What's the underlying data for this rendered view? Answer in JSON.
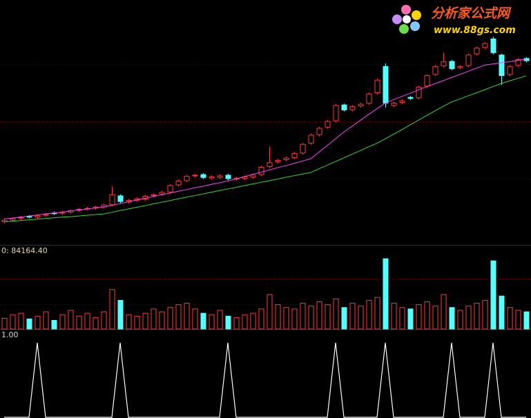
{
  "chart_data": {
    "type": "candlestick",
    "watermark": {
      "title": "分析家公式网",
      "url": "www.88gs.com"
    },
    "ylim": [
      0,
      100
    ],
    "yticks": [
      25,
      50,
      75
    ],
    "grid": true,
    "up_color": "#ff3c3c",
    "down_color": "#54ffff",
    "open": [
      6.2,
      6.9,
      7.6,
      8.5,
      8.2,
      9.0,
      10.0,
      9.9,
      10.4,
      11.2,
      11.9,
      12.2,
      12.7,
      13.6,
      17.5,
      14.8,
      15.6,
      16.1,
      17.6,
      18.3,
      19.2,
      22.3,
      24.1,
      26.2,
      26.8,
      25.3,
      25.6,
      26.5,
      24.8,
      25.1,
      25.7,
      26.8,
      30.3,
      32.4,
      33.3,
      34.2,
      36.2,
      40.5,
      44.2,
      47.5,
      50.3,
      57.2,
      55.1,
      56.8,
      57.9,
      62.5,
      74.0,
      57.0,
      58.3,
      60.5,
      60.3,
      65.4,
      70.5,
      74.3,
      76.2,
      73.5,
      74.4,
      79.5,
      82.3,
      86.0,
      79.0,
      70.5,
      74.5,
      77.5
    ],
    "high": [
      7.4,
      8.1,
      8.6,
      9.1,
      9.4,
      10.0,
      10.6,
      10.9,
      11.6,
      12.2,
      12.6,
      13.2,
      14.1,
      21.7,
      18.1,
      16.1,
      16.8,
      17.9,
      18.6,
      19.6,
      22.6,
      24.6,
      26.6,
      27.1,
      27.4,
      26.4,
      26.8,
      27.1,
      25.8,
      26.4,
      27.2,
      30.6,
      39.0,
      33.6,
      34.6,
      36.6,
      40.6,
      44.6,
      47.6,
      50.6,
      57.6,
      57.8,
      57.1,
      58.1,
      62.6,
      68.6,
      75.3,
      58.6,
      59.6,
      61.1,
      65.6,
      70.6,
      74.6,
      80.0,
      76.8,
      74.6,
      79.6,
      82.6,
      84.6,
      87.0,
      79.6,
      74.6,
      77.6,
      78.1
    ],
    "low": [
      5.5,
      6.2,
      6.9,
      7.6,
      7.5,
      8.3,
      9.1,
      9.2,
      9.7,
      10.5,
      11.2,
      11.5,
      12.0,
      12.9,
      14.3,
      14.1,
      14.9,
      15.4,
      16.9,
      17.6,
      18.5,
      21.6,
      23.4,
      25.5,
      24.8,
      24.6,
      24.9,
      24.3,
      24.1,
      24.4,
      25.0,
      26.1,
      29.6,
      31.7,
      32.6,
      33.5,
      35.5,
      39.8,
      43.5,
      46.8,
      49.6,
      54.3,
      54.4,
      56.1,
      57.2,
      61.8,
      56.0,
      56.3,
      57.6,
      59.3,
      59.6,
      64.7,
      69.8,
      73.6,
      72.3,
      72.8,
      73.7,
      78.8,
      81.6,
      79.3,
      66.0,
      69.8,
      73.8,
      75.8
    ],
    "close": [
      6.8,
      7.5,
      8.0,
      8.3,
      8.8,
      9.4,
      9.8,
      10.3,
      11.0,
      11.6,
      12.0,
      12.6,
      13.5,
      18.0,
      15.0,
      15.5,
      16.2,
      17.3,
      18.0,
      19.0,
      22.0,
      24.0,
      26.0,
      26.5,
      25.5,
      25.8,
      26.2,
      25.0,
      25.2,
      25.8,
      26.6,
      30.0,
      32.0,
      33.0,
      34.0,
      36.0,
      40.0,
      44.0,
      47.0,
      50.0,
      57.0,
      55.0,
      56.5,
      57.5,
      62.0,
      68.0,
      58.0,
      58.0,
      59.0,
      60.0,
      65.0,
      70.0,
      74.0,
      76.0,
      73.0,
      74.0,
      79.0,
      82.0,
      84.0,
      80.0,
      70.0,
      74.0,
      77.0,
      76.5
    ],
    "ma": [
      {
        "color": "#ff44ff",
        "values": [
          7.4,
          7.8,
          8.3,
          8.7,
          9.1,
          9.6,
          10.0,
          10.4,
          10.9,
          11.3,
          11.7,
          12.2,
          12.6,
          13.4,
          14.1,
          14.9,
          15.7,
          16.4,
          17.2,
          17.9,
          18.7,
          19.5,
          20.2,
          21.0,
          21.7,
          22.5,
          23.2,
          24.0,
          24.9,
          25.9,
          26.9,
          27.8,
          28.8,
          29.8,
          30.7,
          31.7,
          32.7,
          33.7,
          36.6,
          39.5,
          42.4,
          45.4,
          47.9,
          50.5,
          53.1,
          55.6,
          58.0,
          59.5,
          60.9,
          62.3,
          63.8,
          65.2,
          66.5,
          67.8,
          69.2,
          70.5,
          71.9,
          73.2,
          74.6,
          75.1,
          75.6,
          76.1,
          76.7,
          77.2
        ]
      },
      {
        "color": "#33dd33",
        "values": [
          6.1,
          6.4,
          6.7,
          7.0,
          7.3,
          7.6,
          7.9,
          8.2,
          8.4,
          8.7,
          9.0,
          9.3,
          9.6,
          10.3,
          11.1,
          11.8,
          12.5,
          13.2,
          14.0,
          14.7,
          15.4,
          16.2,
          16.9,
          17.6,
          18.3,
          19.1,
          19.8,
          20.5,
          21.2,
          22.0,
          22.7,
          23.4,
          24.1,
          24.8,
          25.6,
          26.3,
          27.0,
          27.7,
          29.3,
          30.9,
          32.5,
          34.1,
          35.7,
          37.3,
          38.9,
          40.5,
          42.4,
          44.4,
          46.4,
          48.5,
          50.5,
          52.6,
          54.6,
          56.6,
          58.5,
          59.8,
          61.2,
          62.5,
          63.9,
          65.2,
          66.6,
          67.7,
          68.8,
          69.9
        ]
      }
    ],
    "volume": {
      "readout": "0: 84164.40",
      "ylim": [
        0,
        100000
      ],
      "yticks": [
        35000,
        70000
      ],
      "values": [
        15000,
        20000,
        22000,
        14000,
        18000,
        24000,
        12000,
        20000,
        26000,
        18000,
        22000,
        16000,
        24000,
        55000,
        40000,
        20000,
        18000,
        22000,
        28000,
        24000,
        30000,
        34000,
        36000,
        28000,
        22000,
        20000,
        26000,
        18000,
        16000,
        20000,
        22000,
        28000,
        48000,
        34000,
        30000,
        28000,
        36000,
        32000,
        38000,
        34000,
        42000,
        30000,
        36000,
        32000,
        40000,
        44000,
        98000,
        36000,
        30000,
        28000,
        34000,
        38000,
        32000,
        48000,
        30000,
        26000,
        32000,
        36000,
        40000,
        95000,
        46000,
        30000,
        26000,
        24000
      ]
    },
    "signal": {
      "color": "#ffffff",
      "ylim": [
        0,
        1
      ],
      "yticks": [
        {
          "value": 1,
          "label": "1.00"
        }
      ],
      "values": [
        0,
        0,
        0,
        0,
        1,
        0,
        0,
        0,
        0,
        0,
        0,
        0,
        0,
        0,
        1,
        0,
        0,
        0,
        0,
        0,
        0,
        0,
        0,
        0,
        0,
        0,
        0,
        1,
        0,
        0,
        0,
        0,
        0,
        0,
        0,
        0,
        0,
        0,
        0,
        0,
        1,
        0,
        0,
        0,
        0,
        0,
        1,
        0,
        0,
        0,
        0,
        0,
        0,
        0,
        1,
        0,
        0,
        0,
        0,
        1,
        0,
        0,
        0,
        0
      ]
    }
  }
}
